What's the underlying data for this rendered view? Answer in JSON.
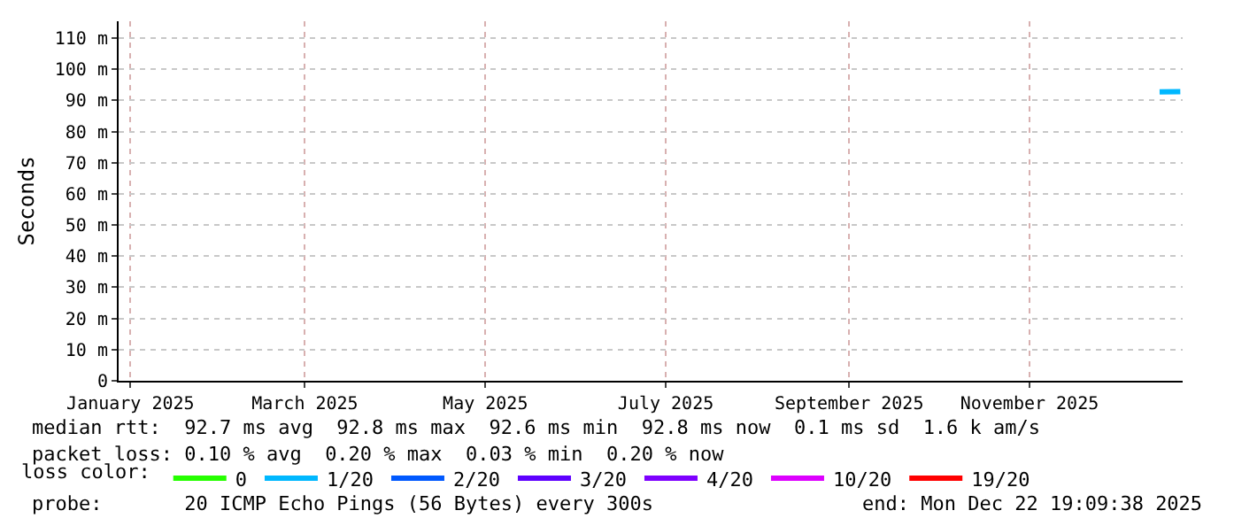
{
  "chart_data": {
    "type": "line",
    "ylabel": "Seconds",
    "x": [
      "2025-12-15",
      "2025-12-22"
    ],
    "series": [
      {
        "name": "0",
        "color": "#26ff00",
        "values": [
          null,
          null
        ]
      },
      {
        "name": "1/20",
        "color": "#00b8ff",
        "values": [
          92.7,
          92.8
        ]
      },
      {
        "name": "2/20",
        "color": "#0059ff",
        "values": [
          null,
          null
        ]
      },
      {
        "name": "3/20",
        "color": "#5e00ff",
        "values": [
          null,
          null
        ]
      },
      {
        "name": "4/20",
        "color": "#7e00ff",
        "values": [
          null,
          null
        ]
      },
      {
        "name": "10/20",
        "color": "#dd00ff",
        "values": [
          null,
          null
        ]
      },
      {
        "name": "19/20",
        "color": "#ff0000",
        "values": [
          null,
          null
        ]
      }
    ],
    "legend_title": "loss color:",
    "legend": "bottom",
    "xlim": [
      "2024-12-28",
      "2025-12-22T19:09"
    ],
    "xticks": [
      {
        "value": "2025-01-01",
        "label": "January 2025"
      },
      {
        "value": "2025-03-01",
        "label": "March 2025"
      },
      {
        "value": "2025-05-01",
        "label": "May 2025"
      },
      {
        "value": "2025-07-01",
        "label": "July 2025"
      },
      {
        "value": "2025-09-01",
        "label": "September 2025"
      },
      {
        "value": "2025-11-01",
        "label": "November 2025"
      }
    ],
    "ylim": [
      0,
      115.4
    ],
    "yticks": [
      0,
      {
        "value": 10,
        "label": "10 m"
      },
      {
        "value": 20,
        "label": "20 m"
      },
      {
        "value": 30,
        "label": "30 m"
      },
      {
        "value": 40,
        "label": "40 m"
      },
      {
        "value": 50,
        "label": "50 m"
      },
      {
        "value": 60,
        "label": "60 m"
      },
      {
        "value": 70,
        "label": "70 m"
      },
      {
        "value": 80,
        "label": "80 m"
      },
      {
        "value": 90,
        "label": "90 m"
      },
      {
        "value": 100,
        "label": "100 m"
      },
      {
        "value": 110,
        "label": "110 m"
      }
    ],
    "grid": true,
    "line_style": "solid",
    "annotations": [
      "median rtt:  92.7 ms avg  92.8 ms max  92.6 ms min  92.8 ms now  0.1 ms sd  1.6 k am/s",
      "packet loss: 0.10 % avg  0.20 % max  0.03 % min  0.20 % now",
      "probe:       20 ICMP Echo Pings (56 Bytes) every 300s",
      "end: Mon Dec 22 19:09:38 2025"
    ]
  }
}
